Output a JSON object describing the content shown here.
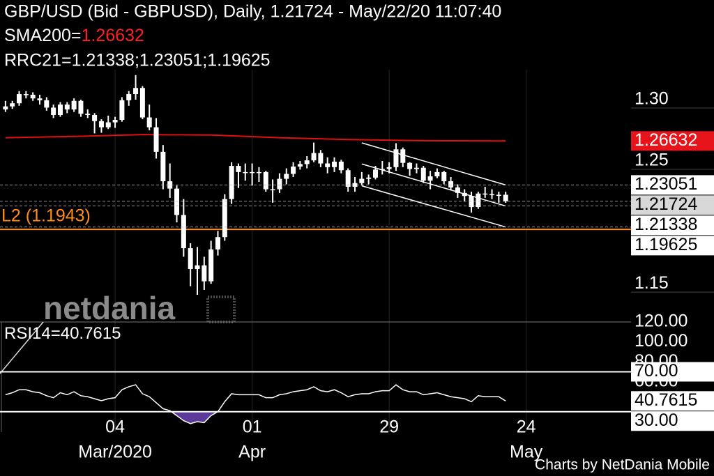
{
  "chart_data": {
    "type": "candlestick",
    "title": "GBP/USD (Bid - GBPUSD),  Daily, 1.21724 - May/22/20 11:07:40",
    "sma_label": "SMA200=",
    "sma_value_label": "1.26632",
    "rrc_text": "RRC21=1.21338;1.23051;1.19625",
    "watermark": "netdania",
    "credit": "Charts by NetDania Mobile",
    "xlim": [
      -0.8,
      91.3
    ],
    "xticks": [
      {
        "value": 16,
        "label": "04"
      },
      {
        "value": 36,
        "label": "01"
      },
      {
        "value": 56,
        "label": "29"
      },
      {
        "value": 76,
        "label": "24"
      }
    ],
    "month_labels": [
      {
        "value": 16,
        "label": "Mar/2020"
      },
      {
        "value": 36,
        "label": "Apr"
      },
      {
        "value": 76,
        "label": "May"
      }
    ],
    "price_panel": {
      "ylim": [
        1.12,
        1.3244
      ],
      "yticks": [
        1.15,
        1.25,
        {
          "value": 1.3,
          "label": "1.30"
        }
      ],
      "series": [
        {
          "name": "GBP/USD",
          "color": "#ffffff",
          "ohlc": [
            [
              1.292,
              1.299,
              1.29,
              1.2945
            ],
            [
              1.2945,
              1.299,
              1.2925,
              1.297
            ],
            [
              1.297,
              1.307,
              1.295,
              1.3045
            ],
            [
              1.3045,
              1.307,
              1.301,
              1.304
            ],
            [
              1.304,
              1.306,
              1.299,
              1.301
            ],
            [
              1.301,
              1.304,
              1.296,
              1.2995
            ],
            [
              1.2995,
              1.302,
              1.291,
              1.2935
            ],
            [
              1.2935,
              1.296,
              1.285,
              1.2875
            ],
            [
              1.2875,
              1.298,
              1.286,
              1.296
            ],
            [
              1.296,
              1.298,
              1.289,
              1.292
            ],
            [
              1.292,
              1.301,
              1.29,
              1.299
            ],
            [
              1.299,
              1.3,
              1.286,
              1.2885
            ],
            [
              1.2885,
              1.292,
              1.285,
              1.2875
            ],
            [
              1.2875,
              1.289,
              1.2725,
              1.2825
            ],
            [
              1.2825,
              1.284,
              1.273,
              1.2775
            ],
            [
              1.2775,
              1.287,
              1.276,
              1.2815
            ],
            [
              1.2815,
              1.286,
              1.277,
              1.2835
            ],
            [
              1.2835,
              1.302,
              1.282,
              1.2995
            ],
            [
              1.2995,
              1.307,
              1.295,
              1.3045
            ],
            [
              1.3045,
              1.32,
              1.3,
              1.3095
            ],
            [
              1.3095,
              1.311,
              1.284,
              1.2855
            ],
            [
              1.2855,
              1.296,
              1.275,
              1.2775
            ],
            [
              1.2775,
              1.285,
              1.252,
              1.2575
            ],
            [
              1.2575,
              1.263,
              1.227,
              1.2335
            ],
            [
              1.2335,
              1.248,
              1.22,
              1.2275
            ],
            [
              1.2275,
              1.23,
              1.2,
              1.206
            ],
            [
              1.206,
              1.219,
              1.172,
              1.179
            ],
            [
              1.179,
              1.183,
              1.148,
              1.162
            ],
            [
              1.162,
              1.18,
              1.141,
              1.165
            ],
            [
              1.165,
              1.172,
              1.145,
              1.152
            ],
            [
              1.152,
              1.185,
              1.15,
              1.178
            ],
            [
              1.178,
              1.193,
              1.173,
              1.188
            ],
            [
              1.188,
              1.223,
              1.185,
              1.219
            ],
            [
              1.219,
              1.249,
              1.215,
              1.246
            ],
            [
              1.246,
              1.248,
              1.228,
              1.241
            ],
            [
              1.241,
              1.248,
              1.234,
              1.241
            ],
            [
              1.241,
              1.248,
              1.23,
              1.241
            ],
            [
              1.241,
              1.245,
              1.233,
              1.241
            ],
            [
              1.241,
              1.242,
              1.225,
              1.227
            ],
            [
              1.227,
              1.235,
              1.216,
              1.227
            ],
            [
              1.227,
              1.24,
              1.224,
              1.2355
            ],
            [
              1.2355,
              1.244,
              1.231,
              1.2395
            ],
            [
              1.2395,
              1.249,
              1.237,
              1.2455
            ],
            [
              1.2455,
              1.25,
              1.243,
              1.2475
            ],
            [
              1.2475,
              1.254,
              1.244,
              1.2505
            ],
            [
              1.2505,
              1.265,
              1.249,
              1.2565
            ],
            [
              1.2565,
              1.259,
              1.245,
              1.248
            ],
            [
              1.248,
              1.253,
              1.24,
              1.245
            ],
            [
              1.245,
              1.253,
              1.241,
              1.2495
            ],
            [
              1.2495,
              1.251,
              1.24,
              1.2425
            ],
            [
              1.2425,
              1.244,
              1.225,
              1.229
            ],
            [
              1.229,
              1.237,
              1.225,
              1.232
            ],
            [
              1.232,
              1.241,
              1.23,
              1.2355
            ],
            [
              1.2355,
              1.239,
              1.231,
              1.2365
            ],
            [
              1.2365,
              1.246,
              1.235,
              1.243
            ],
            [
              1.243,
              1.25,
              1.239,
              1.2435
            ],
            [
              1.2435,
              1.249,
              1.24,
              1.245
            ],
            [
              1.245,
              1.2645,
              1.242,
              1.2595
            ],
            [
              1.2595,
              1.261,
              1.245,
              1.2485
            ],
            [
              1.2485,
              1.249,
              1.238,
              1.2435
            ],
            [
              1.2435,
              1.248,
              1.24,
              1.2445
            ],
            [
              1.2445,
              1.246,
              1.232,
              1.234
            ],
            [
              1.234,
              1.242,
              1.227,
              1.2375
            ],
            [
              1.2375,
              1.244,
              1.236,
              1.241
            ],
            [
              1.241,
              1.242,
              1.231,
              1.2335
            ],
            [
              1.2335,
              1.237,
              1.226,
              1.2285
            ],
            [
              1.2285,
              1.231,
              1.22,
              1.224
            ],
            [
              1.224,
              1.227,
              1.217,
              1.2215
            ],
            [
              1.2215,
              1.225,
              1.208,
              1.2125
            ],
            [
              1.2125,
              1.225,
              1.211,
              1.2235
            ],
            [
              1.2235,
              1.229,
              1.22,
              1.223
            ],
            [
              1.223,
              1.227,
              1.219,
              1.2225
            ],
            [
              1.2225,
              1.225,
              1.216,
              1.2225
            ],
            [
              1.2225,
              1.225,
              1.216,
              1.21724
            ]
          ]
        }
      ],
      "sma": {
        "color": "#e01010",
        "x": [
          0,
          10,
          20,
          30,
          40,
          50,
          60,
          73
        ],
        "values": [
          1.269,
          1.27,
          1.2715,
          1.2712,
          1.269,
          1.2675,
          1.2666,
          1.26632
        ]
      },
      "channel": {
        "color": "#ffffff",
        "x": [
          52,
          73
        ],
        "upper": [
          1.2648,
          1.23051
        ],
        "middle": [
          1.2476,
          1.21338
        ],
        "lower": [
          1.2298,
          1.19625
        ]
      },
      "level": {
        "label": "L2 (1.1943)",
        "value": 1.1943,
        "color": "#ff8c1a"
      },
      "price_markers": [
        {
          "value": 1.26632,
          "bg": "#e8141c",
          "fg": "#ffffff"
        },
        {
          "value": 1.23051,
          "bg": "#ffffff",
          "fg": "#000000"
        },
        {
          "value": 1.21724,
          "bg": "#d8d8d8",
          "fg": "#000000"
        },
        {
          "value": 1.21338,
          "bg": "#ffffff",
          "fg": "#000000"
        },
        {
          "value": 1.19625,
          "bg": "#ffffff",
          "fg": "#000000"
        }
      ]
    },
    "rsi_panel": {
      "label": "RSI14=",
      "ylim": [
        9.5,
        121.4
      ],
      "yticks": [
        {
          "value": 120,
          "label": "120.00"
        },
        {
          "value": 100,
          "label": "100.00"
        },
        {
          "value": 80,
          "label": "80.00"
        },
        {
          "value": 60,
          "label": "60.00"
        }
      ],
      "levels": [
        {
          "value": 70,
          "label": "70.00"
        },
        {
          "value": 30,
          "label": "30.00"
        }
      ],
      "fill_color": "#5b3a9a",
      "series": [
        {
          "color": "#ffffff",
          "values": [
            47,
            49,
            52,
            52,
            50,
            49,
            46,
            44,
            49,
            47,
            50,
            46,
            45,
            43,
            41,
            43,
            44,
            52,
            55,
            57,
            48,
            45,
            39,
            33,
            31,
            26,
            21,
            18,
            20,
            19,
            26,
            30,
            40,
            48,
            47,
            47,
            47,
            47,
            44,
            44,
            47,
            48,
            50,
            51,
            52,
            55,
            51,
            50,
            52,
            49,
            45,
            47,
            48,
            48,
            50,
            51,
            51,
            57,
            52,
            50,
            50,
            47,
            48,
            49,
            47,
            45,
            44,
            43,
            40,
            46,
            45,
            45,
            45,
            40.7615
          ]
        }
      ]
    }
  }
}
